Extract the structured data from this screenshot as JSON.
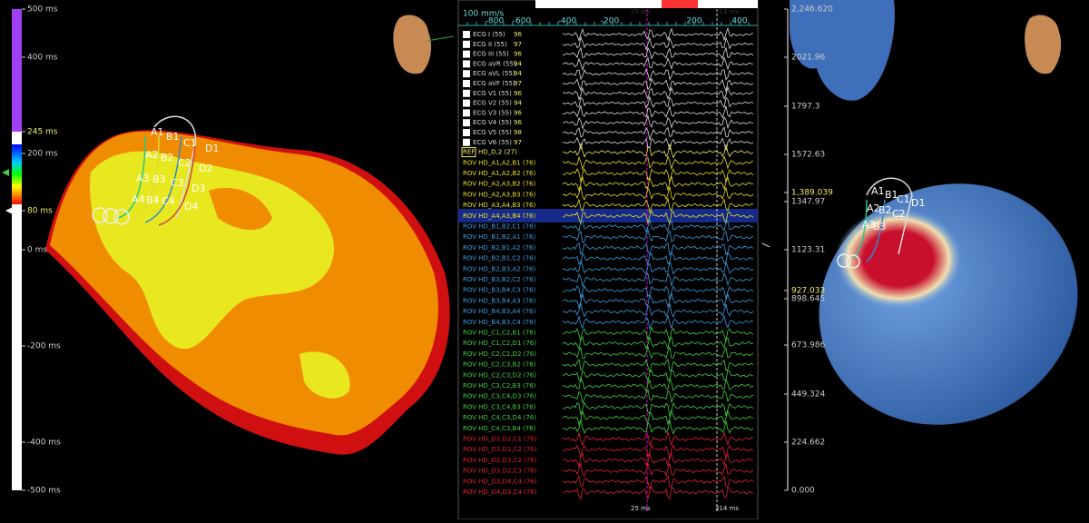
{
  "left_scale": {
    "labels": [
      "500 ms",
      "400 ms",
      "245 ms",
      "200 ms",
      "80 ms",
      "0 ms",
      "-200 ms",
      "-400 ms",
      "-500 ms"
    ]
  },
  "left_map": {
    "electrodes": [
      "A1",
      "B1",
      "C1",
      "D1",
      "A2",
      "B2",
      "C2",
      "D2",
      "A3",
      "B3",
      "C3",
      "D3",
      "A4",
      "B4",
      "C4",
      "D4"
    ]
  },
  "ecg": {
    "speed": "100 mm/s",
    "axis": [
      "-800",
      "-600",
      "-400",
      "-200",
      "200",
      "400"
    ],
    "markers": [
      "25 ms",
      "314 ms"
    ],
    "channels": [
      {
        "name": "ECG I (55)",
        "score": "96"
      },
      {
        "name": "ECG II (55)",
        "score": "97"
      },
      {
        "name": "ECG III (55)",
        "score": "96"
      },
      {
        "name": "ECG aVR (55)",
        "score": "94"
      },
      {
        "name": "ECG aVL (55)",
        "score": "94"
      },
      {
        "name": "ECG aVF (55)",
        "score": "97"
      },
      {
        "name": "ECG V1 (55)",
        "score": "96"
      },
      {
        "name": "ECG V2 (55)",
        "score": "94"
      },
      {
        "name": "ECG V3 (55)",
        "score": "96"
      },
      {
        "name": "ECG V4 (55)",
        "score": "96"
      },
      {
        "name": "ECG V5 (55)",
        "score": "98"
      },
      {
        "name": "ECG V6 (55)",
        "score": "97"
      }
    ],
    "ref": "REF",
    "ref_channel": "HD_D,2 (27)",
    "rov_channels": [
      "ROV HD_A1,A2,B1 (76)",
      "ROV HD_A1,A2,B2 (76)",
      "ROV HD_A2,A3,B2 (76)",
      "ROV HD_A2,A3,B3 (76)",
      "ROV HD_A3,A4,B3 (76)",
      "ROV HD_A4,A3,B4 (76)",
      "ROV HD_B1,B2,C1 (76)",
      "ROV HD_B1,B2,A1 (76)",
      "ROV HD_B2,B1,A2 (76)",
      "ROV HD_B2,B1,C2 (76)",
      "ROV HD_B2,B3,A2 (76)",
      "ROV HD_B3,B2,C2 (76)",
      "ROV HD_B3,B4,C3 (76)",
      "ROV HD_B3,B4,A3 (76)",
      "ROV HD_B4,B3,A4 (76)",
      "ROV HD_B4,B3,C4 (76)",
      "ROV HD_C1,C2,B1 (76)",
      "ROV HD_C1,C2,D1 (76)",
      "ROV HD_C2,C1,D2 (76)",
      "ROV HD_C2,C3,B2 (76)",
      "ROV HD_C2,C3,D2 (76)",
      "ROV HD_C3,C2,B3 (76)",
      "ROV HD_C3,C4,D3 (76)",
      "ROV HD_C3,C4,B3 (76)",
      "ROV HD_C4,C3,D4 (76)",
      "ROV HD_C4,C3,B4 (76)",
      "ROV HD_D1,D2,C1 (76)",
      "ROV HD_D2,D1,C2 (76)",
      "ROV HD_D2,D3,C2 (76)",
      "ROV HD_D3,D2,C3 (76)",
      "ROV HD_D3,D4,C4 (76)",
      "ROV HD_D4,D3,C4 (76)"
    ],
    "footer": [
      "25 ms",
      "314 ms"
    ]
  },
  "right_scale": {
    "labels": [
      "2,246.620",
      "2021.96",
      "1797.3",
      "1572.63",
      "1,389.039",
      "1347.97",
      "1123.31",
      "927.033",
      "898.645",
      "673.986",
      "449.324",
      "224.662",
      "0.000"
    ]
  },
  "right_map": {
    "electrodes": [
      "A1",
      "B1",
      "C1",
      "D1",
      "A2",
      "B2",
      "C2",
      "A3",
      "B3"
    ]
  }
}
